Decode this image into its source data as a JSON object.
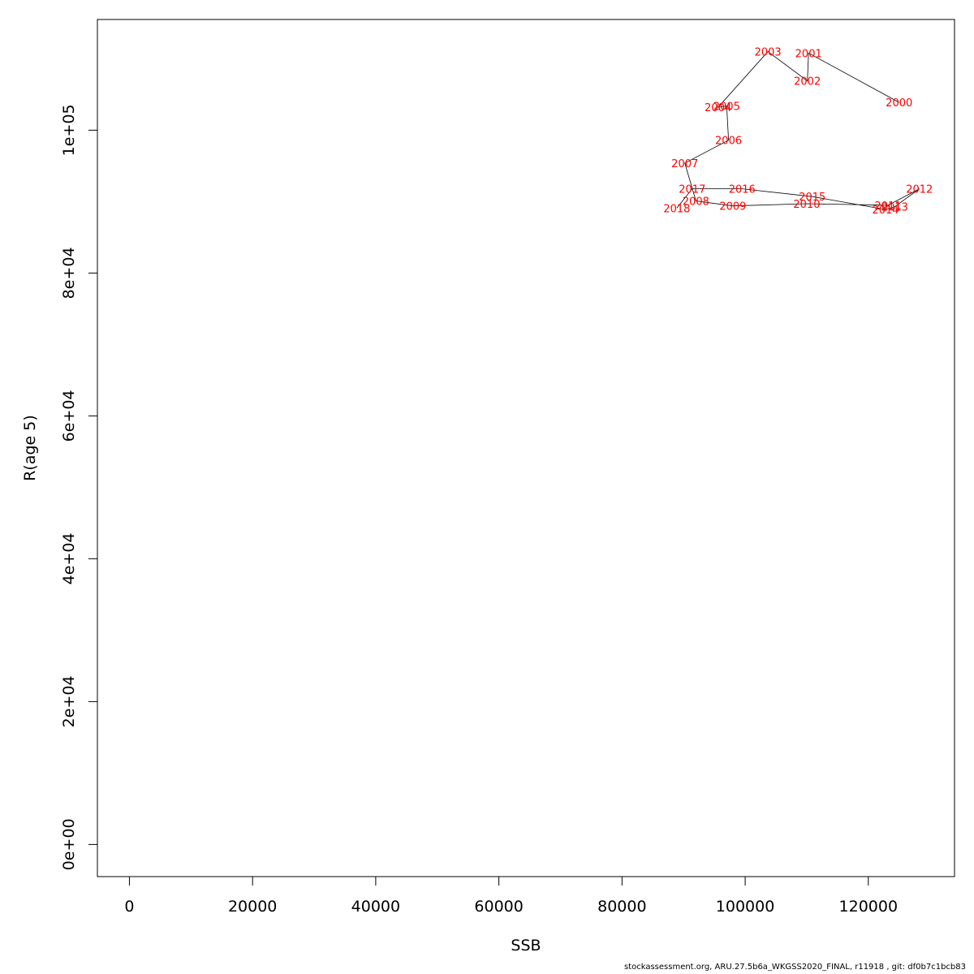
{
  "chart_data": {
    "type": "scatter",
    "connected": true,
    "xlabel": "SSB",
    "ylabel": "R(age 5)",
    "xlim": [
      -5200,
      134000
    ],
    "ylim": [
      -4500,
      115500
    ],
    "xticks": [
      0,
      20000,
      40000,
      60000,
      80000,
      100000,
      120000
    ],
    "xtick_labels": [
      "0",
      "20000",
      "40000",
      "60000",
      "80000",
      "100000",
      "120000"
    ],
    "yticks": [
      0,
      20000,
      40000,
      60000,
      80000,
      100000
    ],
    "ytick_labels": [
      "0e+00",
      "2e+04",
      "4e+04",
      "6e+04",
      "8e+04",
      "1e+05"
    ],
    "grid": false,
    "line_color": "#000000",
    "label_color": "#ff0000",
    "points": [
      {
        "label": "2000",
        "x": 125000,
        "y": 103900
      },
      {
        "label": "2001",
        "x": 110300,
        "y": 110800
      },
      {
        "label": "2002",
        "x": 110100,
        "y": 106900
      },
      {
        "label": "2003",
        "x": 103700,
        "y": 111000
      },
      {
        "label": "2004",
        "x": 95600,
        "y": 103200
      },
      {
        "label": "2005",
        "x": 97000,
        "y": 103400
      },
      {
        "label": "2006",
        "x": 97300,
        "y": 98600
      },
      {
        "label": "2007",
        "x": 90200,
        "y": 95400
      },
      {
        "label": "2008",
        "x": 92000,
        "y": 90100
      },
      {
        "label": "2009",
        "x": 98000,
        "y": 89400
      },
      {
        "label": "2010",
        "x": 110000,
        "y": 89700
      },
      {
        "label": "2011",
        "x": 123200,
        "y": 89500
      },
      {
        "label": "2012",
        "x": 128300,
        "y": 91800
      },
      {
        "label": "2013",
        "x": 124300,
        "y": 89300
      },
      {
        "label": "2014",
        "x": 122800,
        "y": 88900
      },
      {
        "label": "2015",
        "x": 110900,
        "y": 90700
      },
      {
        "label": "2016",
        "x": 99500,
        "y": 91800
      },
      {
        "label": "2017",
        "x": 91400,
        "y": 91800
      },
      {
        "label": "2018",
        "x": 88900,
        "y": 89100
      }
    ]
  },
  "footer": "stockassessment.org, ARU.27.5b6a_WKGSS2020_FINAL, r11918 , git: df0b7c1bcb83"
}
